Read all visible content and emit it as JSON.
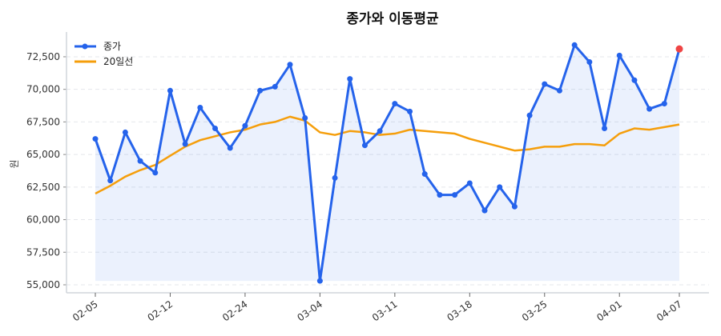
{
  "chart_data": {
    "type": "line",
    "title": "종가와 이동평균",
    "xlabel": "",
    "ylabel": "원",
    "ylim": [
      54386,
      74400
    ],
    "yticks": [
      55000,
      57500,
      60000,
      62500,
      65000,
      67500,
      70000,
      72500
    ],
    "ytick_labels": [
      "55,000",
      "57,500",
      "60,000",
      "62,500",
      "65,000",
      "67,500",
      "70,000",
      "72,500"
    ],
    "xtick_indices": [
      0,
      5,
      10,
      15,
      20,
      25,
      30,
      35,
      39
    ],
    "xtick_labels": [
      "02-05",
      "02-12",
      "02-24",
      "03-04",
      "03-11",
      "03-18",
      "03-25",
      "04-01",
      "04-07"
    ],
    "grid": true,
    "legend_position": "top-left",
    "series": [
      {
        "name": "종가",
        "color": "#2563eb",
        "marker": true,
        "values": [
          66200,
          63000,
          66700,
          64500,
          63600,
          69900,
          65800,
          68600,
          67000,
          65500,
          67200,
          69900,
          70200,
          71900,
          67800,
          55300,
          63200,
          70800,
          65700,
          66800,
          68900,
          68300,
          63500,
          61900,
          61900,
          62800,
          60700,
          62500,
          61000,
          68000,
          70400,
          69900,
          73400,
          72100,
          67000,
          72600,
          70700,
          68500,
          68900,
          73100
        ]
      },
      {
        "name": "20일선",
        "color": "#f59e0b",
        "marker": false,
        "values": [
          62000,
          62600,
          63300,
          63800,
          64200,
          64900,
          65600,
          66100,
          66400,
          66700,
          66900,
          67300,
          67500,
          67900,
          67600,
          66700,
          66500,
          66800,
          66700,
          66500,
          66600,
          66900,
          66800,
          66700,
          66600,
          66200,
          65900,
          65600,
          65300,
          65400,
          65600,
          65600,
          65800,
          65800,
          65700,
          66600,
          67000,
          66900,
          67100,
          67300
        ]
      }
    ],
    "highlight_last_color": "#ef4444",
    "fill_color": "#2563eb"
  }
}
